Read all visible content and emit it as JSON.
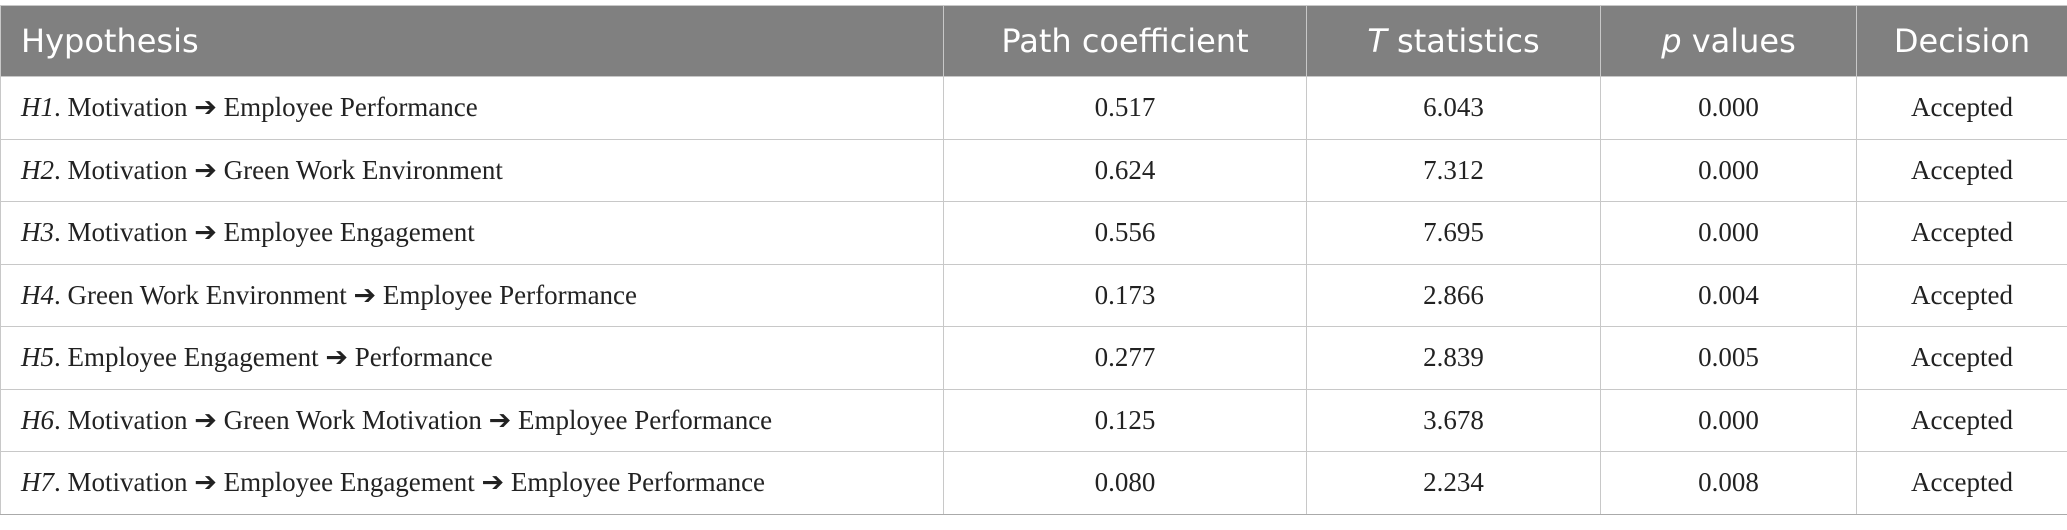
{
  "table": {
    "header": [
      "Hypothesis",
      "Path coefficient",
      "T statistics",
      "p values",
      "Decision"
    ],
    "rows": [
      [
        "H1. Motivation ➔ Employee Performance",
        "0.517",
        "6.043",
        "0.000",
        "Accepted"
      ],
      [
        "H2. Motivation ➔ Green Work Environment",
        "0.624",
        "7.312",
        "0.000",
        "Accepted"
      ],
      [
        "H3. Motivation ➔ Employee Engagement",
        "0.556",
        "7.695",
        "0.000",
        "Accepted"
      ],
      [
        "H4. Green Work Environment ➔ Employee Performance",
        "0.173",
        "2.866",
        "0.004",
        "Accepted"
      ],
      [
        "H5. Employee Engagement ➔ Performance",
        "0.277",
        "2.839",
        "0.005",
        "Accepted"
      ],
      [
        "H6. Motivation ➔ Green Work Motivation ➔ Employee Performance",
        "0.125",
        "3.678",
        "0.000",
        "Accepted"
      ],
      [
        "H7. Motivation ➔ Employee Engagement ➔ Employee Performance",
        "0.080",
        "2.234",
        "0.008",
        "Accepted"
      ]
    ]
  }
}
